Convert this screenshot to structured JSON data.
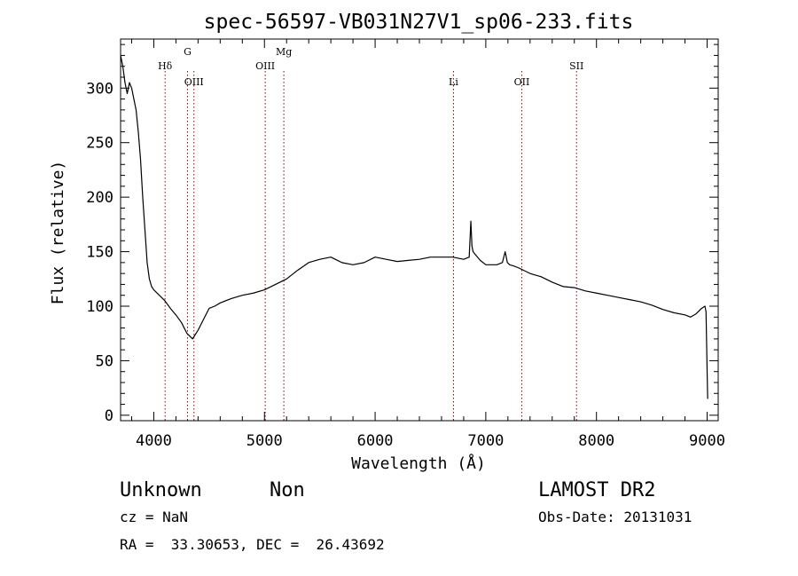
{
  "chart_data": {
    "type": "line",
    "title": "spec-56597-VB031N27V1_sp06-233.fits",
    "xlabel": "Wavelength (Å)",
    "ylabel": "Flux (relative)",
    "xlim": [
      3700,
      9100
    ],
    "ylim": [
      -5,
      345
    ],
    "x_ticks": [
      4000,
      5000,
      6000,
      7000,
      8000,
      9000
    ],
    "y_ticks": [
      0,
      50,
      100,
      150,
      200,
      250,
      300
    ],
    "grid": false,
    "line_color": "#000000",
    "marker_color": "#8b0000",
    "spectral_lines": [
      {
        "label": "Hδ",
        "wavelength": 4102,
        "row": 2
      },
      {
        "label": "G",
        "wavelength": 4305,
        "row": 1
      },
      {
        "label": "OIII",
        "wavelength": 4363,
        "row": 3
      },
      {
        "label": "OIII",
        "wavelength": 5007,
        "row": 2
      },
      {
        "label": "Mg",
        "wavelength": 5175,
        "row": 1
      },
      {
        "label": "Li",
        "wavelength": 6708,
        "row": 3
      },
      {
        "label": "OII",
        "wavelength": 7325,
        "row": 3
      },
      {
        "label": "SII",
        "wavelength": 7820,
        "row": 2
      }
    ],
    "series": [
      {
        "x": [
          3700,
          3720,
          3740,
          3760,
          3780,
          3800,
          3820,
          3840,
          3860,
          3880,
          3900,
          3920,
          3940,
          3960,
          3980,
          4000,
          4050,
          4100,
          4150,
          4200,
          4250,
          4300,
          4350,
          4400,
          4450,
          4500,
          4550,
          4600,
          4700,
          4800,
          4900,
          5000,
          5100,
          5200,
          5300,
          5400,
          5500,
          5600,
          5700,
          5800,
          5900,
          6000,
          6100,
          6200,
          6300,
          6400,
          6500,
          6600,
          6700,
          6800,
          6850,
          6865,
          6875,
          6885,
          6900,
          6950,
          7000,
          7100,
          7150,
          7175,
          7195,
          7215,
          7250,
          7300,
          7400,
          7500,
          7600,
          7700,
          7800,
          7900,
          8000,
          8100,
          8200,
          8300,
          8400,
          8500,
          8600,
          8700,
          8800,
          8850,
          8900,
          8950,
          8980,
          8990,
          9000,
          9005
        ],
        "y": [
          330,
          320,
          305,
          295,
          305,
          300,
          290,
          280,
          260,
          235,
          200,
          170,
          140,
          125,
          118,
          115,
          110,
          105,
          98,
          92,
          85,
          75,
          70,
          78,
          88,
          98,
          100,
          103,
          107,
          110,
          112,
          115,
          120,
          125,
          133,
          140,
          143,
          145,
          140,
          138,
          140,
          145,
          143,
          141,
          142,
          143,
          145,
          145,
          145,
          143,
          145,
          178,
          155,
          150,
          148,
          142,
          138,
          138,
          140,
          150,
          140,
          138,
          137,
          135,
          130,
          127,
          122,
          118,
          117,
          114,
          112,
          110,
          108,
          106,
          104,
          101,
          97,
          94,
          92,
          90,
          93,
          98,
          100,
          95,
          40,
          15
        ]
      }
    ]
  },
  "footer": {
    "classification": "Unknown",
    "subclass": "Non",
    "survey": "LAMOST DR2",
    "cz": "cz = NaN",
    "obs_date": "Obs-Date: 20131031",
    "coords": "RA =  33.30653, DEC =  26.43692"
  }
}
